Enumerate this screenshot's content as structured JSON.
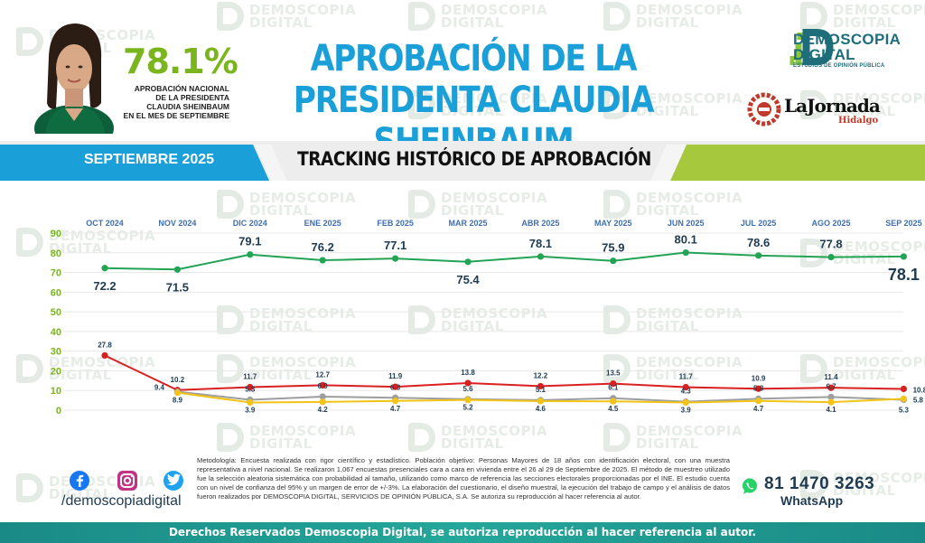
{
  "header": {
    "approval_value": "78.1%",
    "approval_caption": [
      "APROBACIÓN NACIONAL",
      "DE LA PRESIDENTA",
      "CLAUDIA SHEINBAUM",
      "EN EL MES DE SEPTIEMBRE"
    ],
    "title_line1": "APROBACIÓN DE LA",
    "title_line2": "PRESIDENTA CLAUDIA SHEINBAUM",
    "brand_name_line1": "DEMOSCOPIA",
    "brand_name_line2": "DIGITAL",
    "brand_tagline": "ESTUDIOS DE OPINIÓN PÚBLICA",
    "partner_name": "LaJornada",
    "partner_region": "Hidalgo"
  },
  "band": {
    "period": "SEPTIEMBRE 2025",
    "subtitle": "TRACKING HISTÓRICO DE APROBACIÓN"
  },
  "watermark": {
    "line1": "DEMOSCOPIA",
    "line2": "DIGITAL"
  },
  "colors": {
    "blue": "#1a9fd9",
    "lime": "#a6c83c",
    "green_series": "#23a455",
    "red_series": "#d92020",
    "gray_series": "#9e9e9e",
    "yellow_series": "#f2c318",
    "teal": "#1d6e7a"
  },
  "chart_data": {
    "type": "line",
    "categories": [
      "OCT 2024",
      "NOV 2024",
      "DIC 2024",
      "ENE 2025",
      "FEB 2025",
      "MAR 2025",
      "ABR 2025",
      "MAY 2025",
      "JUN 2025",
      "JUL 2025",
      "AGO 2025",
      "SEP 2025"
    ],
    "ylim": [
      0,
      90
    ],
    "yticks": [
      0,
      10,
      20,
      30,
      40,
      50,
      60,
      70,
      80,
      90
    ],
    "grid": true,
    "title": "",
    "xlabel": "",
    "ylabel": "",
    "series": [
      {
        "key": "green",
        "values": [
          72.2,
          71.5,
          79.1,
          76.2,
          77.1,
          75.4,
          78.1,
          75.9,
          80.1,
          78.6,
          77.8,
          78.1
        ],
        "labels": [
          "72.2",
          "71.5",
          "79.1",
          "76.2",
          "77.1",
          "75.4",
          "78.1",
          "75.9",
          "80.1",
          "78.6",
          "77.8",
          "78.1"
        ],
        "color": "#23a455"
      },
      {
        "key": "red",
        "values": [
          27.8,
          10.2,
          11.7,
          12.7,
          11.9,
          13.8,
          12.2,
          13.5,
          11.7,
          10.9,
          11.4,
          10.8
        ],
        "labels": [
          "27.8",
          "10.2",
          "11.7",
          "12.7",
          "11.9",
          "13.8",
          "12.2",
          "13.5",
          "11.7",
          "10.9",
          "11.4",
          "10.8"
        ],
        "color": "#d92020"
      },
      {
        "key": "gray",
        "values": [
          null,
          9.4,
          5.3,
          6.9,
          6.3,
          5.6,
          5.1,
          6.1,
          4.3,
          5.8,
          6.7,
          5.3
        ],
        "labels": [
          "",
          "9.4",
          "5.3",
          "6.9",
          "6.3",
          "5.6",
          "5.1",
          "6.1",
          "4.3",
          "5.8",
          "6.7",
          "5.3"
        ],
        "color": "#9e9e9e"
      },
      {
        "key": "yellow",
        "values": [
          null,
          8.9,
          3.9,
          4.2,
          4.7,
          5.2,
          4.6,
          4.5,
          3.9,
          4.7,
          4.1,
          5.8
        ],
        "labels": [
          "",
          "8.9",
          "3.9",
          "4.2",
          "4.7",
          "5.2",
          "4.6",
          "4.5",
          "3.9",
          "4.7",
          "4.1",
          "5.8"
        ],
        "color": "#f2c318"
      }
    ]
  },
  "methodology": "Metodología: Encuesta realizada con rigor científico y estadístico. Población objetivo: Personas Mayores de 18 años con identificación electoral, con una muestra representativa a nivel nacional. Se realizaron 1,067 encuestas presenciales cara a cara en vivienda entre el 26 al 29 de Septiembre de 2025. El método de muestreo utilizado fue la selección aleatoria sistemática con probabilidad al tamaño, utilizando como marco de referencia las secciones electorales proporcionadas por el INE. El estudio cuenta con un nivel de confianza del 95% y un margen de error de +/-3%. La elaboración del cuestionario, el diseño muestral, la ejecución del trabajo de campo y el análisis de datos fueron realizados por DEMOSCOPIA DIGITAL, SERVICIOS DE OPINIÓN PÚBLICA, S.A. Se autoriza su reproducción al hacer referencia al autor.",
  "social": {
    "handle": "/demoscopiadigital",
    "icons": [
      "facebook-icon",
      "instagram-icon",
      "twitter-icon"
    ]
  },
  "whatsapp": {
    "number": "81 1470 3263",
    "label": "WhatsApp"
  },
  "footer": {
    "text": "Derechos Reservados Demoscopia Digital, se autoriza reproducción al hacer referencia al autor."
  }
}
